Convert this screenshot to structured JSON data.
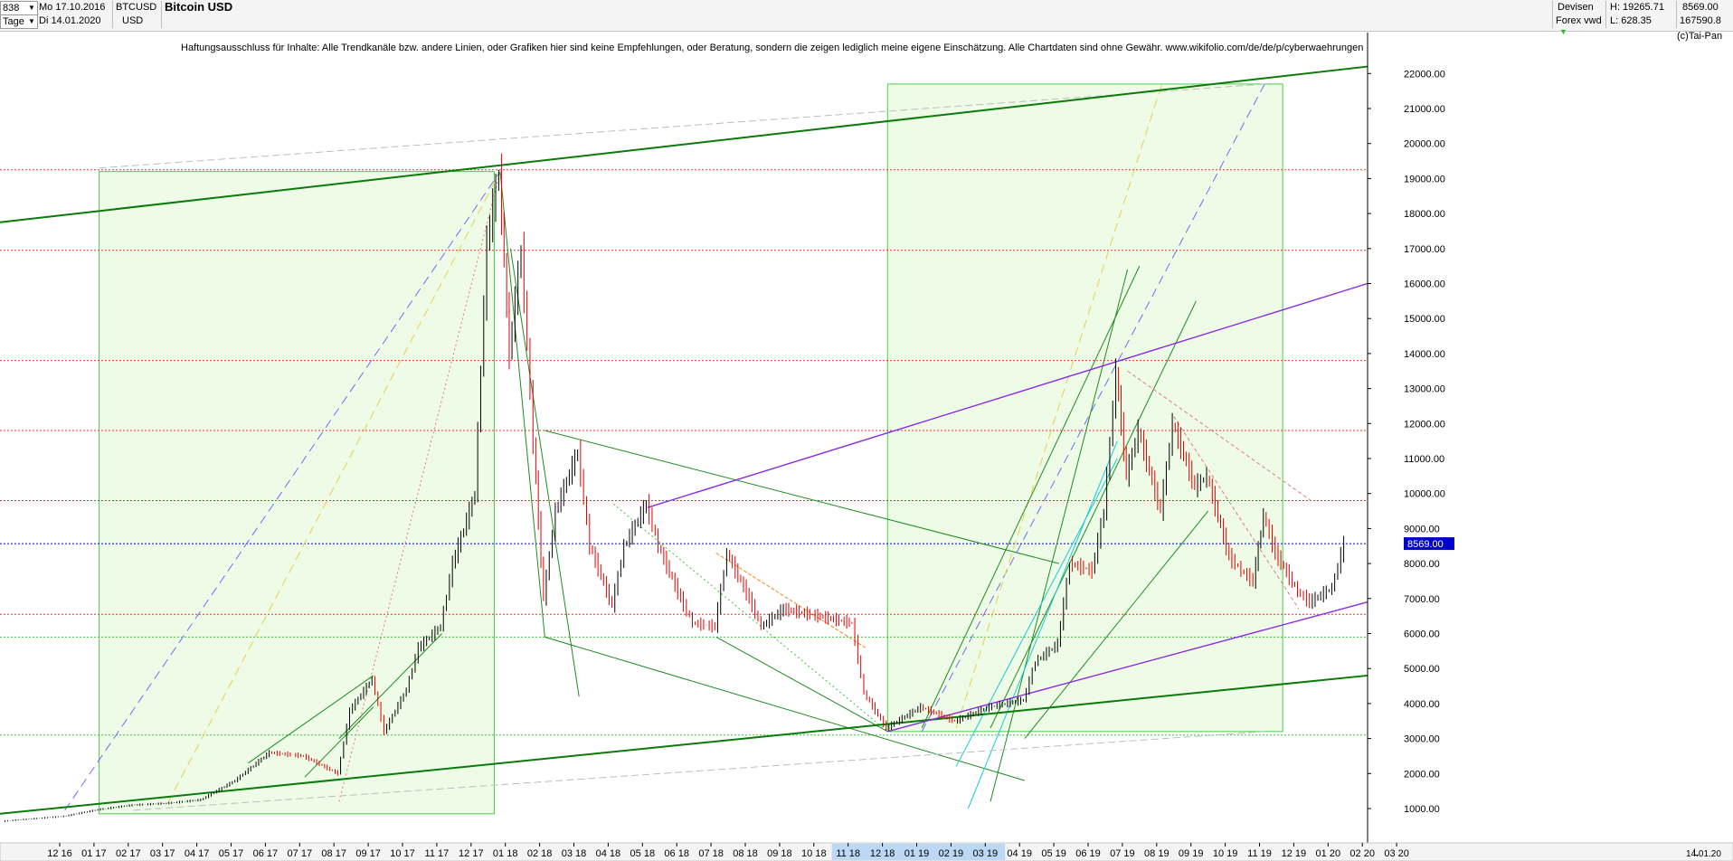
{
  "header": {
    "count": "838",
    "from_date": "Mo 17.10.2016",
    "to_date": "Di 14.01.2020",
    "period": "Tage",
    "symbol": "BTCUSD",
    "currency": "USD",
    "title": "Bitcoin USD",
    "market": "Devisen",
    "source": "Forex vwd",
    "high_label": "H: 19265.71",
    "low_label": "L: 628.35",
    "last_value": "8569.00",
    "volume_value": "167590.8",
    "copyright": "(c)Tai-Pan"
  },
  "disclaimer": "Haftungsausschluss für Inhalte: Alle Trendkanäle bzw. andere Linien, oder Grafiken hier sind keine Empfehlungen, oder Beratung, sondern die zeigen lediglich meine eigene Einschätzung. Alle Chartdaten sind ohne Gewähr.  www.wikifolio.com/de/de/p/cyberwaehrungen",
  "footer": {
    "mode": "L",
    "date": "14.01.20"
  },
  "colors": {
    "up": "#000000",
    "down": "#e00000",
    "zone_fill": "#eefbe6",
    "zone_border": "#4ccc4c",
    "trend_dark_green": "#0a7a0a",
    "channel_purple": "#8a2be2",
    "resistance_red": "#e53030",
    "current_price_blue": "#0000cc",
    "axis_highlight": "#bcd8f5"
  },
  "chart_data": {
    "type": "candlestick",
    "title": "Bitcoin USD",
    "symbol": "BTCUSD",
    "ylim": [
      600,
      22800
    ],
    "y_axis_side": "right",
    "y_ticks": [
      1000,
      2000,
      3000,
      4000,
      5000,
      6000,
      7000,
      8000,
      9000,
      10000,
      11000,
      12000,
      13000,
      14000,
      15000,
      16000,
      17000,
      18000,
      19000,
      20000,
      21000,
      22000
    ],
    "y_tick_labels": [
      "1000.00",
      "2000.00",
      "3000.00",
      "4000.00",
      "5000.00",
      "6000.00",
      "7000.00",
      "8000.00",
      "9000.00",
      "10000.00",
      "11000.00",
      "12000.00",
      "13000.00",
      "14000.00",
      "15000.00",
      "16000.00",
      "17000.00",
      "18000.00",
      "19000.00",
      "20000.00",
      "21000.00",
      "22000.00"
    ],
    "x_tick_labels": [
      "12 16",
      "01 17",
      "02 17",
      "03 17",
      "04 17",
      "05 17",
      "06 17",
      "07 17",
      "08 17",
      "09 17",
      "10 17",
      "11 17",
      "12 17",
      "01 18",
      "02 18",
      "03 18",
      "04 18",
      "05 18",
      "06 18",
      "07 18",
      "08 18",
      "09 18",
      "10 18",
      "11 18",
      "12 18",
      "01 19",
      "02 19",
      "03 19",
      "04 19",
      "05 19",
      "06 19",
      "07 19",
      "08 19",
      "09 19",
      "10 19",
      "11 19",
      "12 19",
      "01 20",
      "02 20",
      "03 20"
    ],
    "x_highlight_range": [
      "11 18",
      "04 19"
    ],
    "price_path": [
      {
        "date": "2016-10",
        "close": 640
      },
      {
        "date": "2016-12",
        "close": 780
      },
      {
        "date": "2017-01",
        "close": 970
      },
      {
        "date": "2017-02",
        "close": 1100
      },
      {
        "date": "2017-03",
        "close": 1150
      },
      {
        "date": "2017-04",
        "close": 1250
      },
      {
        "date": "2017-05",
        "close": 1800
      },
      {
        "date": "2017-06",
        "close": 2600
      },
      {
        "date": "2017-07",
        "close": 2500
      },
      {
        "date": "2017-08",
        "close": 2000
      },
      {
        "date": "2017-08b",
        "close": 3800
      },
      {
        "date": "2017-09",
        "close": 4700
      },
      {
        "date": "2017-09b",
        "close": 3200
      },
      {
        "date": "2017-10",
        "close": 4400
      },
      {
        "date": "2017-10b",
        "close": 5600
      },
      {
        "date": "2017-11",
        "close": 6200
      },
      {
        "date": "2017-11b",
        "close": 8000
      },
      {
        "date": "2017-12",
        "close": 10000
      },
      {
        "date": "2017-12b",
        "close": 17200
      },
      {
        "date": "2017-12c",
        "close": 19200
      },
      {
        "date": "2018-01",
        "close": 14000
      },
      {
        "date": "2018-01b",
        "close": 17000
      },
      {
        "date": "2018-01c",
        "close": 11500
      },
      {
        "date": "2018-02",
        "close": 7000
      },
      {
        "date": "2018-02b",
        "close": 9500
      },
      {
        "date": "2018-03",
        "close": 11200
      },
      {
        "date": "2018-03b",
        "close": 8500
      },
      {
        "date": "2018-04",
        "close": 6800
      },
      {
        "date": "2018-04b",
        "close": 8500
      },
      {
        "date": "2018-05",
        "close": 9700
      },
      {
        "date": "2018-05b",
        "close": 8500
      },
      {
        "date": "2018-06",
        "close": 7000
      },
      {
        "date": "2018-06b",
        "close": 6300
      },
      {
        "date": "2018-07",
        "close": 6200
      },
      {
        "date": "2018-07b",
        "close": 8300
      },
      {
        "date": "2018-08",
        "close": 7000
      },
      {
        "date": "2018-08b",
        "close": 6200
      },
      {
        "date": "2018-09",
        "close": 6700
      },
      {
        "date": "2018-10",
        "close": 6500
      },
      {
        "date": "2018-11",
        "close": 6300
      },
      {
        "date": "2018-11b",
        "close": 4300
      },
      {
        "date": "2018-12",
        "close": 3300
      },
      {
        "date": "2019-01",
        "close": 3900
      },
      {
        "date": "2019-02",
        "close": 3500
      },
      {
        "date": "2019-03",
        "close": 3900
      },
      {
        "date": "2019-04",
        "close": 4100
      },
      {
        "date": "2019-04b",
        "close": 5200
      },
      {
        "date": "2019-05",
        "close": 5700
      },
      {
        "date": "2019-05b",
        "close": 8000
      },
      {
        "date": "2019-06",
        "close": 7800
      },
      {
        "date": "2019-06b",
        "close": 9500
      },
      {
        "date": "2019-06c",
        "close": 13500
      },
      {
        "date": "2019-07",
        "close": 10500
      },
      {
        "date": "2019-07b",
        "close": 11800
      },
      {
        "date": "2019-08",
        "close": 9500
      },
      {
        "date": "2019-08b",
        "close": 12000
      },
      {
        "date": "2019-09",
        "close": 10200
      },
      {
        "date": "2019-09b",
        "close": 10500
      },
      {
        "date": "2019-10",
        "close": 8200
      },
      {
        "date": "2019-10b",
        "close": 7800
      },
      {
        "date": "2019-10c",
        "close": 7500
      },
      {
        "date": "2019-11",
        "close": 9400
      },
      {
        "date": "2019-11b",
        "close": 8300
      },
      {
        "date": "2019-12",
        "close": 7200
      },
      {
        "date": "2019-12b",
        "close": 6900
      },
      {
        "date": "2020-01",
        "close": 7300
      },
      {
        "date": "2020-01b",
        "close": 8569
      }
    ],
    "current_price": 8569,
    "current_price_label": "8569.00",
    "horizontal_levels": [
      {
        "value": 19250,
        "color": "red",
        "style": "dotted"
      },
      {
        "value": 16950,
        "color": "red",
        "style": "dotted"
      },
      {
        "value": 13800,
        "color": "red",
        "style": "dotted"
      },
      {
        "value": 11800,
        "color": "red",
        "style": "dotted"
      },
      {
        "value": 9800,
        "color": "red",
        "style": "dotted"
      },
      {
        "value": 6550,
        "color": "red",
        "style": "dotted"
      },
      {
        "value": 5900,
        "color": "green",
        "style": "dotted"
      },
      {
        "value": 3100,
        "color": "green",
        "style": "dotted"
      }
    ],
    "trend_lines": [
      {
        "from": [
          "2016-10",
          17750
        ],
        "to": [
          "2020-03",
          22200
        ],
        "color": "dark-green",
        "width": "thick"
      },
      {
        "from": [
          "2016-10",
          850
        ],
        "to": [
          "2020-03",
          4800
        ],
        "color": "dark-green",
        "width": "thick"
      },
      {
        "from": [
          "2018-05",
          9600
        ],
        "to": [
          "2020-02",
          16000
        ],
        "color": "purple",
        "width": "medium"
      },
      {
        "from": [
          "2018-12",
          3200
        ],
        "to": [
          "2020-02",
          6900
        ],
        "color": "purple",
        "width": "medium"
      }
    ],
    "zones": [
      {
        "from": "2017-01",
        "to": "2017-12",
        "low": 850,
        "high": 19200
      },
      {
        "from": "2018-12",
        "to": "2019-11",
        "low": 3200,
        "high": 21700
      }
    ],
    "grid": false,
    "legend": "none"
  }
}
